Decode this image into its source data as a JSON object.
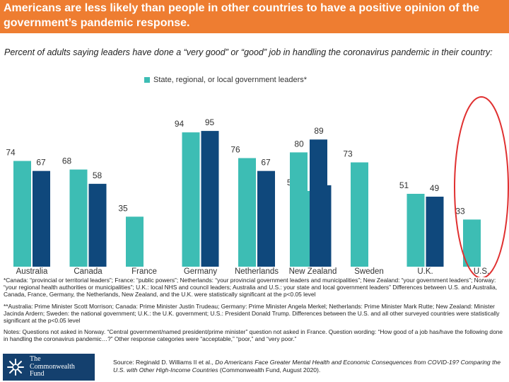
{
  "header": {
    "title": "Americans are less likely than people in other countries to have a positive opinion of the government’s pandemic response.",
    "subtitle": "Percent of adults saying leaders have done a “very good” or “good” job in handling the coronavirus pandemic in their country:"
  },
  "legend": {
    "label": "State, regional, or local government leaders*"
  },
  "colors": {
    "title_bg": "#ee7d31",
    "series_teal": "#3dbdb4",
    "series_navy": "#0f487c",
    "highlight_ring": "#e03030",
    "logo_bg": "#14406e"
  },
  "chart_data": {
    "type": "bar",
    "categories": [
      "Australia",
      "Canada",
      "France",
      "Germany",
      "Netherlands",
      "New Zealand",
      "Sweden",
      "U.K.",
      "U.S."
    ],
    "series": [
      {
        "name": "State, regional, or local government leaders*",
        "color": "#3dbdb4",
        "values": [
          74,
          68,
          35,
          94,
          76,
          53,
          73,
          51,
          33
        ]
      },
      {
        "name": "",
        "color": "#0f487c",
        "values": [
          67,
          58,
          0,
          95,
          67,
          57,
          0,
          49,
          0
        ]
      }
    ],
    "value_labels": {
      "teal": [
        "74",
        "68",
        "35",
        "94",
        "76",
        "53",
        "73",
        "51",
        "33"
      ],
      "navy": [
        "67",
        "58",
        "",
        "95",
        "67",
        "57",
        "",
        "49",
        ""
      ]
    },
    "extra_labels": [
      "80",
      "89"
    ],
    "extra_values": [
      80,
      89
    ],
    "ylim": [
      0,
      100
    ],
    "grid": false,
    "legend_position": "top-center",
    "highlighted_category": "U.S."
  },
  "notes": {
    "note1": "*Canada: “provincial or territorial leaders”; France: “public powers”; Netherlands: “your provincial government leaders and municipalities”; New Zealand: “your government leaders”; Norway: “your regional health authorities or municipalities”; U.K.: local NHS and council leaders; Australia and U.S.: your state and local government leaders” Differences between U.S. and Australia, Canada, France, Germany, the Netherlands, New Zealand, and the U.K. were statistically significant at the p<0.05 level",
    "note2": "**Australia: Prime Minister Scott Morrison; Canada: Prime Minister Justin Trudeau; Germany: Prime Minister Angela Merkel; Netherlands: Prime Minister Mark Rutte; New Zealand: Minister Jacinda Ardern; Sweden: the national government; U.K.: the U.K. government; U.S.: President Donald Trump. Differences between the U.S. and all other surveyed countries were statistically significant at the p<0.05 level",
    "note3": "Notes: Questions not asked in Norway. “Central government/named president/prime minister” question not asked in France. Question wording: “How good of a job has/have the following done in handling the coronavirus pandemic…?” Other response categories were “acceptable,” “poor,” and “very poor.”"
  },
  "source": {
    "prefix": "Source: Reginald D. Williams II et al., ",
    "title": "Do Americans Face Greater Mental Health and Economic Consequences from COVID-19? Comparing the U.S. with Other High-Income Countries",
    "suffix": " (Commonwealth Fund, August 2020)."
  },
  "logo": {
    "line1": "The",
    "line2": "Commonwealth",
    "line3": "Fund"
  }
}
